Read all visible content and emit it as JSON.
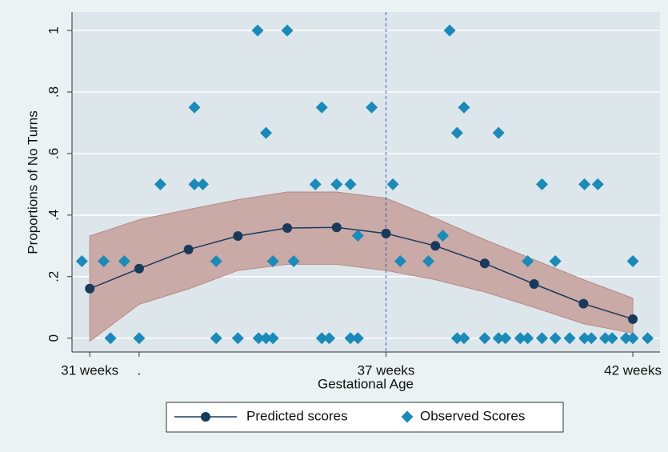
{
  "chart_data": {
    "type": "line",
    "ylabel": "Proportions of No Turns",
    "xlabel": "Gestational Age",
    "xlim": [
      30.64,
      42.55
    ],
    "ylim": [
      -0.045,
      1.06
    ],
    "xticks": [
      {
        "value": 31,
        "label": "31 weeks"
      },
      {
        "value": 32,
        "label": "."
      },
      {
        "value": 37,
        "label": "37 weeks"
      },
      {
        "value": 42,
        "label": "42 weeks"
      }
    ],
    "yticks": [
      0,
      {
        "value": 0.2,
        "label": ".2"
      },
      {
        "value": 0.4,
        "label": ".4"
      },
      {
        "value": 0.6,
        "label": ".6"
      },
      {
        "value": 0.8,
        "label": ".8"
      },
      1
    ],
    "grid": true,
    "vline": 37,
    "vline_color": "#3a63b8",
    "band": {
      "color": "#c9aaa6",
      "edge": "#b88985",
      "x": [
        31,
        32,
        33,
        34,
        35,
        36,
        37,
        38,
        39,
        40,
        41,
        42
      ],
      "upper": [
        0.332,
        0.385,
        0.418,
        0.45,
        0.475,
        0.475,
        0.455,
        0.39,
        0.32,
        0.255,
        0.19,
        0.13
      ],
      "lower": [
        -0.01,
        0.11,
        0.16,
        0.22,
        0.24,
        0.24,
        0.22,
        0.19,
        0.15,
        0.1,
        0.047,
        0.016
      ]
    },
    "series": [
      {
        "name": "Predicted scores",
        "type": "line",
        "color": "#1a3a5c",
        "x": [
          31,
          32,
          33,
          34,
          35,
          36,
          37,
          38,
          39,
          40,
          41,
          42
        ],
        "values": [
          0.161,
          0.226,
          0.288,
          0.332,
          0.358,
          0.36,
          0.34,
          0.3,
          0.243,
          0.176,
          0.112,
          0.062
        ]
      },
      {
        "name": "Observed Scores",
        "type": "scatter",
        "color": "#1b8ab8",
        "x": [
          30.84,
          31.28,
          31.42,
          31.7,
          32.0,
          32.43,
          33.12,
          33.12,
          33.29,
          33.56,
          33.56,
          34.0,
          34.4,
          34.42,
          34.57,
          34.71,
          34.57,
          34.71,
          35.0,
          35.13,
          35.57,
          35.7,
          35.7,
          35.85,
          36.0,
          36.28,
          36.28,
          36.43,
          36.43,
          36.71,
          37.14,
          37.29,
          37.86,
          38.15,
          38.29,
          38.44,
          38.44,
          38.58,
          38.58,
          39.0,
          39.28,
          39.28,
          39.42,
          39.72,
          39.87,
          39.87,
          40.16,
          40.16,
          40.43,
          40.43,
          40.72,
          41.02,
          41.02,
          41.16,
          41.29,
          41.44,
          41.58,
          41.86,
          42.0,
          42.0,
          42.3
        ],
        "values": [
          0.25,
          0.25,
          0,
          0.25,
          0,
          0.5,
          0.75,
          0.5,
          0.5,
          0.25,
          0,
          0,
          1,
          0,
          0,
          0,
          0.667,
          0.25,
          1,
          0.25,
          0.5,
          0.75,
          0,
          0,
          0.5,
          0.5,
          0,
          0,
          0.333,
          0.75,
          0.5,
          0.25,
          0.25,
          0.333,
          1,
          0.667,
          0,
          0,
          0.75,
          0,
          0.667,
          0,
          0,
          0,
          0,
          0.25,
          0.5,
          0,
          0.25,
          0,
          0,
          0.5,
          0,
          0,
          0.5,
          0,
          0,
          0,
          0,
          0.25,
          0
        ]
      }
    ]
  }
}
